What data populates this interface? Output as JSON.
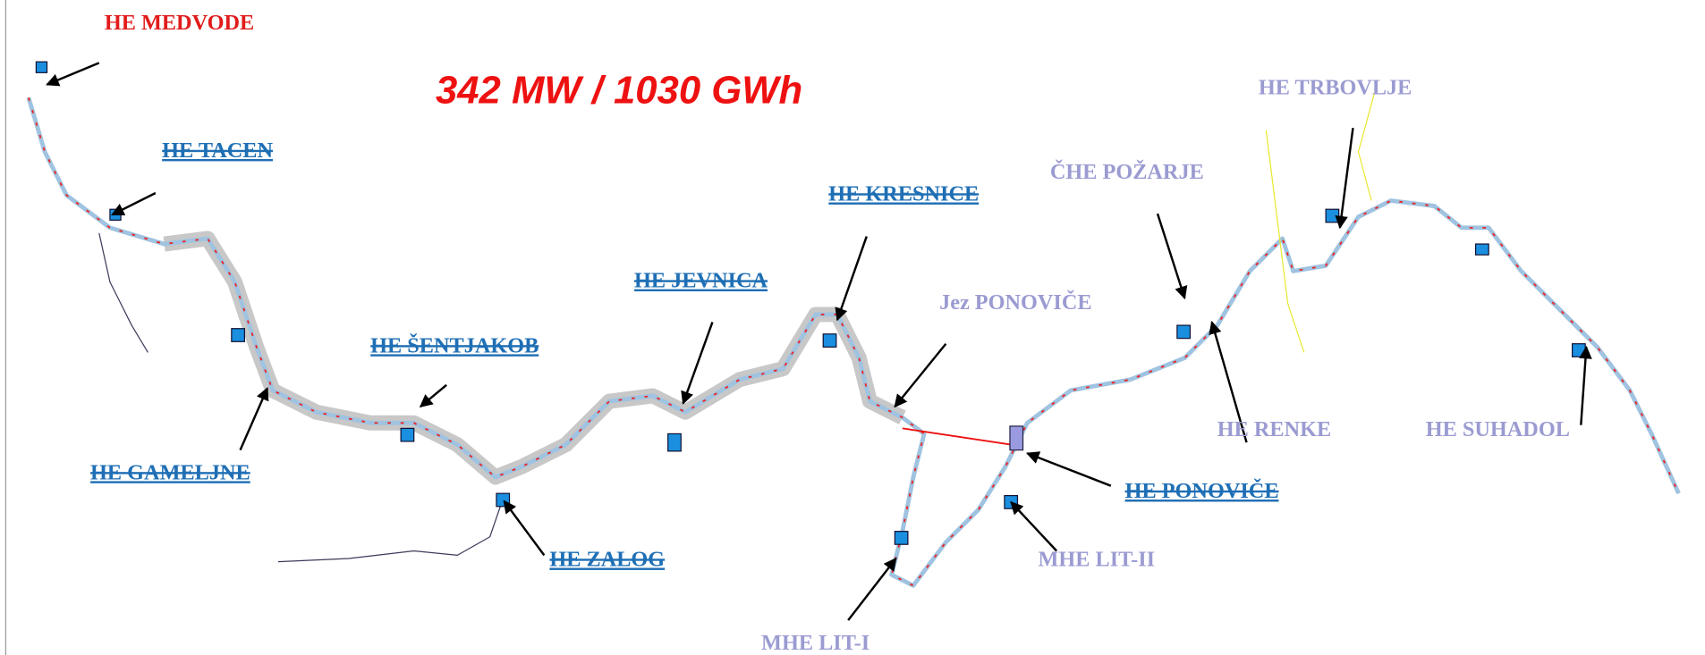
{
  "title": "342 MW / 1030 GWh",
  "plants": {
    "medvode": "HE MEDVODE",
    "tacen": "HE TACEN",
    "sentjakob": "HE ŠENTJAKOB",
    "gameljne": "HE GAMELJNE",
    "zalog": "HE ZALOG",
    "jevnica": "HE JEVNICA",
    "kresnice": "HE KRESNICE",
    "pozarje": "ČHE POŽARJE",
    "jez_ponovice": "Jez PONOVIČE",
    "trbovlje": "HE TRBOVLJE",
    "renke": "HE RENKE",
    "suhadol": "HE SUHADOL",
    "ponovice": "HE PONOVIČE",
    "lit2": "MHE LIT-II",
    "lit1": "MHE LIT-I"
  }
}
